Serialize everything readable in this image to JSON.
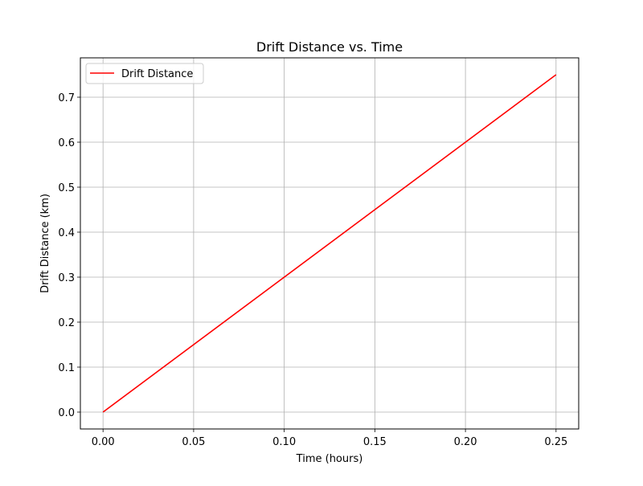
{
  "chart_data": {
    "type": "line",
    "title": "Drift Distance vs. Time",
    "xlabel": "Time (hours)",
    "ylabel": "Drift Distance (km)",
    "xlim": [
      -0.0125,
      0.2625
    ],
    "ylim": [
      -0.0375,
      0.7875
    ],
    "xticks": [
      0.0,
      0.05,
      0.1,
      0.15,
      0.2,
      0.25
    ],
    "xtick_labels": [
      "0.00",
      "0.05",
      "0.10",
      "0.15",
      "0.20",
      "0.25"
    ],
    "yticks": [
      0.0,
      0.1,
      0.2,
      0.3,
      0.4,
      0.5,
      0.6,
      0.7
    ],
    "ytick_labels": [
      "0.0",
      "0.1",
      "0.2",
      "0.3",
      "0.4",
      "0.5",
      "0.6",
      "0.7"
    ],
    "grid": true,
    "legend_position": "top-left",
    "series": [
      {
        "name": "Drift Distance",
        "color": "#ff0000",
        "x": [
          0.0,
          0.25
        ],
        "y": [
          0.0,
          0.75
        ]
      }
    ]
  }
}
